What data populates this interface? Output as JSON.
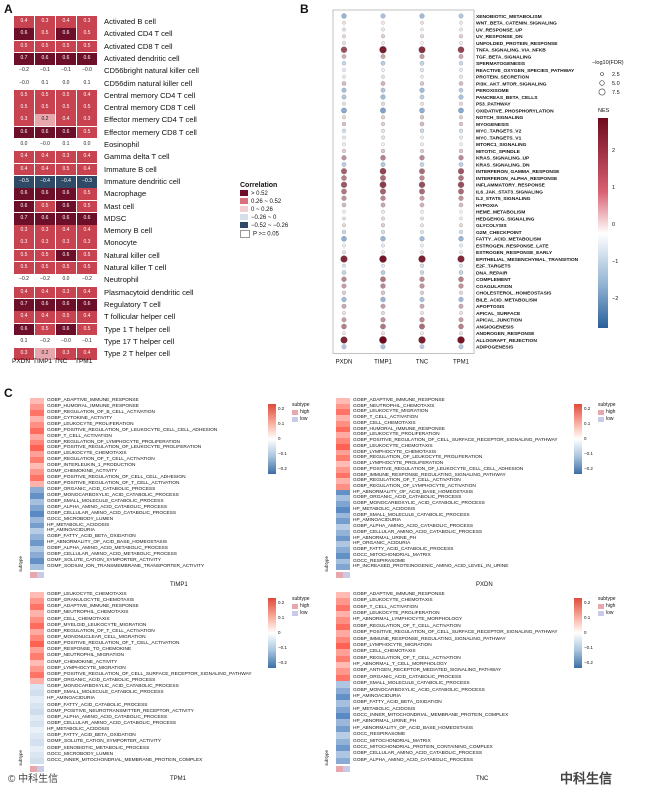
{
  "panel_labels": {
    "a": "A",
    "b": "B",
    "c": "C"
  },
  "panelA": {
    "columns": [
      "PXDN",
      "TIMP1",
      "TNC",
      "TPM1"
    ],
    "rows": [
      {
        "label": "Activated B cell",
        "values": [
          "0.4",
          "0.3",
          "0.4",
          "0.3"
        ]
      },
      {
        "label": "Activated CD4 T cell",
        "values": [
          "0.6",
          "0.5",
          "0.6",
          "0.5"
        ]
      },
      {
        "label": "Activated CD8 T cell",
        "values": [
          "0.5",
          "0.5",
          "0.5",
          "0.5"
        ]
      },
      {
        "label": "Activated dendritic cell",
        "values": [
          "0.7",
          "0.6",
          "0.6",
          "0.6"
        ]
      },
      {
        "label": "CD56bright natural killer cell",
        "values": [
          "−0.2",
          "−0.1",
          "−0.1",
          "−0.0"
        ]
      },
      {
        "label": "CD56dim natural killer cell",
        "values": [
          "−0.0",
          "0.1",
          "0.0",
          "0.1"
        ]
      },
      {
        "label": "Central memory CD4 T cell",
        "values": [
          "0.5",
          "0.5",
          "0.5",
          "0.4"
        ]
      },
      {
        "label": "Central memory CD8 T cell",
        "values": [
          "0.5",
          "0.5",
          "0.5",
          "0.5"
        ]
      },
      {
        "label": "Effector memery CD4 T cell",
        "values": [
          "0.3",
          "0.2",
          "0.4",
          "0.3"
        ]
      },
      {
        "label": "Effector memery CD8 T cell",
        "values": [
          "0.6",
          "0.6",
          "0.6",
          "0.5"
        ]
      },
      {
        "label": "Eosinophil",
        "values": [
          "0.0",
          "−0.0",
          "0.1",
          "0.0"
        ]
      },
      {
        "label": "Gamma delta T cell",
        "values": [
          "0.4",
          "0.4",
          "0.3",
          "0.4"
        ]
      },
      {
        "label": "Immature  B cell",
        "values": [
          "0.4",
          "0.4",
          "0.5",
          "0.4"
        ]
      },
      {
        "label": "Immature dendritic cell",
        "values": [
          "−0.5",
          "−0.4",
          "−0.4",
          "−0.3"
        ]
      },
      {
        "label": "Macrophage",
        "values": [
          "0.6",
          "0.6",
          "0.6",
          "0.5"
        ]
      },
      {
        "label": "Mast cell",
        "values": [
          "0.6",
          "0.5",
          "0.6",
          "0.5"
        ]
      },
      {
        "label": "MDSC",
        "values": [
          "0.7",
          "0.6",
          "0.6",
          "0.6"
        ]
      },
      {
        "label": "Memory B cell",
        "values": [
          "0.3",
          "0.3",
          "0.4",
          "0.4"
        ]
      },
      {
        "label": "Monocyte",
        "values": [
          "0.3",
          "0.3",
          "0.3",
          "0.3"
        ]
      },
      {
        "label": "Natural killer cell",
        "values": [
          "0.5",
          "0.5",
          "0.6",
          "0.5"
        ]
      },
      {
        "label": "Natural killer T cell",
        "values": [
          "0.5",
          "0.5",
          "0.5",
          "0.5"
        ]
      },
      {
        "label": "Neutrophil",
        "values": [
          "−0.2",
          "−0.2",
          "0.0",
          "−0.2"
        ]
      },
      {
        "label": "Plasmacytoid dendritic cell",
        "values": [
          "0.4",
          "0.4",
          "0.3",
          "0.4"
        ]
      },
      {
        "label": "Regulatory T cell",
        "values": [
          "0.7",
          "0.6",
          "0.6",
          "0.6"
        ]
      },
      {
        "label": "T follicular helper cell",
        "values": [
          "0.4",
          "0.4",
          "0.5",
          "0.4"
        ]
      },
      {
        "label": "Type 1 T helper cell",
        "values": [
          "0.6",
          "0.5",
          "0.6",
          "0.5"
        ]
      },
      {
        "label": "Type 17 T helper cell",
        "values": [
          "0.1",
          "−0.2",
          "−0.0",
          "−0.1"
        ]
      },
      {
        "label": "Type 2 T helper cell",
        "values": [
          "0.3",
          "0.2",
          "0.3",
          "0.4"
        ]
      }
    ],
    "legend": {
      "title": "Correlation",
      "items": [
        {
          "label": "> 0.52",
          "color": "#6e0f2a"
        },
        {
          "label": "0.26 ~ 0.52",
          "color": "#d8737d"
        },
        {
          "label": "0 ~ 0.26",
          "color": "#f3cfd2"
        },
        {
          "label": "−0.26 ~ 0",
          "color": "#d4dfea"
        },
        {
          "label": "−0.52 ~ −0.26",
          "color": "#2f4a67"
        },
        {
          "label": "P >= 0.05",
          "color": "#ffffff"
        }
      ]
    }
  },
  "panelB": {
    "columns": [
      "PXDN",
      "TIMP1",
      "TNC",
      "TPM1"
    ],
    "pathways": [
      {
        "name": "XENOBIOTIC_METABOLISM",
        "nes": [
          -1.2,
          -1.0,
          -1.1,
          -0.9
        ]
      },
      {
        "name": "WNT_BETA_CATENIN_SIGNALING",
        "nes": [
          0.3,
          0.2,
          0.3,
          0.2
        ]
      },
      {
        "name": "UV_RESPONSE_UP",
        "nes": [
          -0.4,
          -0.3,
          -0.2,
          -0.3
        ]
      },
      {
        "name": "UV_RESPONSE_DN",
        "nes": [
          0.4,
          0.5,
          0.4,
          0.5
        ]
      },
      {
        "name": "UNFOLDED_PROTEIN_RESPONSE",
        "nes": [
          0.3,
          0.2,
          0.1,
          0.2
        ]
      },
      {
        "name": "TNFA_SIGNALING_VIA_NFKB",
        "nes": [
          1.8,
          2.3,
          2.1,
          1.9
        ]
      },
      {
        "name": "TGF_BETA_SIGNALING",
        "nes": [
          0.8,
          0.9,
          1.0,
          0.9
        ]
      },
      {
        "name": "SPERMATOGENESIS",
        "nes": [
          -0.6,
          -0.8,
          -0.7,
          -0.6
        ]
      },
      {
        "name": "REACTIVE_OXYGEN_SPECIES_PATHWAY",
        "nes": [
          -0.3,
          -0.2,
          -0.4,
          -0.3
        ]
      },
      {
        "name": "PROTEIN_SECRETION",
        "nes": [
          0.2,
          0.3,
          0.2,
          0.3
        ]
      },
      {
        "name": "PI3K_AKT_MTOR_SIGNALING",
        "nes": [
          0.7,
          0.8,
          0.6,
          0.7
        ]
      },
      {
        "name": "PEROXISOME",
        "nes": [
          -1.0,
          -0.9,
          -1.1,
          -0.8
        ]
      },
      {
        "name": "PANCREAS_BETA_CELLS",
        "nes": [
          -0.9,
          -1.1,
          -0.8,
          -1.0
        ]
      },
      {
        "name": "P53_PATHWAY",
        "nes": [
          0.3,
          0.4,
          0.3,
          0.4
        ]
      },
      {
        "name": "OXIDATIVE_PHOSPHORYLATION",
        "nes": [
          -1.4,
          -1.5,
          -1.3,
          -1.4
        ]
      },
      {
        "name": "NOTCH_SIGNALING",
        "nes": [
          0.4,
          0.5,
          0.6,
          0.5
        ]
      },
      {
        "name": "MYOGENESIS",
        "nes": [
          0.6,
          0.5,
          0.7,
          0.6
        ]
      },
      {
        "name": "MYC_TARGETS_V2",
        "nes": [
          -0.5,
          -0.4,
          -0.6,
          -0.5
        ]
      },
      {
        "name": "MYC_TARGETS_V1",
        "nes": [
          -0.3,
          -0.4,
          -0.2,
          -0.3
        ]
      },
      {
        "name": "MTORC1_SIGNALING",
        "nes": [
          0.2,
          0.1,
          0.2,
          0.1
        ]
      },
      {
        "name": "MITOTIC_SPINDLE",
        "nes": [
          0.5,
          0.6,
          0.5,
          0.6
        ]
      },
      {
        "name": "KRAS_SIGNALING_UP",
        "nes": [
          1.1,
          1.3,
          1.2,
          1.2
        ]
      },
      {
        "name": "KRAS_SIGNALING_DN",
        "nes": [
          -0.8,
          -0.9,
          -0.7,
          -0.8
        ]
      },
      {
        "name": "INTERFERON_GAMMA_RESPONSE",
        "nes": [
          1.6,
          1.9,
          1.5,
          1.7
        ]
      },
      {
        "name": "INTERFERON_ALPHA_RESPONSE",
        "nes": [
          1.3,
          1.5,
          1.2,
          1.4
        ]
      },
      {
        "name": "INFLAMMATORY_RESPONSE",
        "nes": [
          1.7,
          2.0,
          1.8,
          1.8
        ]
      },
      {
        "name": "IL6_JAK_STAT3_SIGNALING",
        "nes": [
          1.4,
          1.6,
          1.5,
          1.5
        ]
      },
      {
        "name": "IL2_STAT5_SIGNALING",
        "nes": [
          1.1,
          1.2,
          1.0,
          1.1
        ]
      },
      {
        "name": "HYPOXIA",
        "nes": [
          0.7,
          0.9,
          0.8,
          0.7
        ]
      },
      {
        "name": "HEME_METABOLISM",
        "nes": [
          -0.2,
          -0.3,
          -0.2,
          -0.1
        ]
      },
      {
        "name": "HEDGEHOG_SIGNALING",
        "nes": [
          0.3,
          0.4,
          0.3,
          0.2
        ]
      },
      {
        "name": "GLYCOLYSIS",
        "nes": [
          0.4,
          0.5,
          0.3,
          0.4
        ]
      },
      {
        "name": "G2M_CHECKPOINT",
        "nes": [
          -0.6,
          -0.5,
          -0.4,
          -0.5
        ]
      },
      {
        "name": "FATTY_ACID_METABOLISM",
        "nes": [
          -1.3,
          -1.2,
          -1.1,
          -1.2
        ]
      },
      {
        "name": "ESTROGEN_RESPONSE_LATE",
        "nes": [
          -0.2,
          -0.3,
          -0.2,
          -0.3
        ]
      },
      {
        "name": "ESTROGEN_RESPONSE_EARLY",
        "nes": [
          0.3,
          0.2,
          0.3,
          0.2
        ]
      },
      {
        "name": "EPITHELIAL_MESENCHYMAL_TRANSITION",
        "nes": [
          2.2,
          2.4,
          2.3,
          2.2
        ]
      },
      {
        "name": "E2F_TARGETS",
        "nes": [
          -0.4,
          -0.3,
          -0.5,
          -0.4
        ]
      },
      {
        "name": "DNA_REPAIR",
        "nes": [
          -0.7,
          -0.8,
          -0.6,
          -0.7
        ]
      },
      {
        "name": "COMPLEMENT",
        "nes": [
          1.2,
          1.4,
          1.2,
          1.3
        ]
      },
      {
        "name": "COAGULATION",
        "nes": [
          1.0,
          1.2,
          1.1,
          1.1
        ]
      },
      {
        "name": "CHOLESTEROL_HOMEOSTASIS",
        "nes": [
          0.5,
          0.6,
          0.5,
          0.4
        ]
      },
      {
        "name": "BILE_ACID_METABOLISM",
        "nes": [
          -1.1,
          -1.2,
          -1.0,
          -1.1
        ]
      },
      {
        "name": "APOPTOSIS",
        "nes": [
          0.9,
          1.0,
          0.9,
          0.9
        ]
      },
      {
        "name": "APICAL_SURFACE",
        "nes": [
          0.3,
          0.4,
          0.3,
          0.3
        ]
      },
      {
        "name": "APICAL_JUNCTION",
        "nes": [
          1.0,
          1.1,
          1.2,
          1.0
        ]
      },
      {
        "name": "ANGIOGENESIS",
        "nes": [
          1.3,
          1.4,
          1.5,
          1.3
        ]
      },
      {
        "name": "ANDROGEN_RESPONSE",
        "nes": [
          0.2,
          0.3,
          0.2,
          0.3
        ]
      },
      {
        "name": "ALLOGRAFT_REJECTION",
        "nes": [
          2.2,
          2.5,
          2.3,
          2.4
        ]
      },
      {
        "name": "ADIPOGENESIS",
        "nes": [
          -0.9,
          -1.0,
          -0.8,
          -0.9
        ]
      }
    ],
    "size_legend": {
      "title": "−log10(FDR)",
      "items": [
        "2.5",
        "5.0",
        "7.5"
      ]
    },
    "color_legend": {
      "title": "NES",
      "ticks": [
        "2",
        "1",
        "0",
        "−1",
        "−2"
      ]
    }
  },
  "panelC": {
    "annotation_label": "subtype",
    "annotation_items": [
      "high",
      "low"
    ],
    "colorbar_ticks": [
      "0.2",
      "0.1",
      "0",
      "−0.1",
      "−0.2"
    ],
    "row_annotation_label": "subtype",
    "heatmaps": [
      {
        "gene": "TIMP1",
        "terms": [
          "GOBP_ADAPTIVE_IMMUNE_RESPONSE",
          "GOBP_HUMORAL_IMMUNE_RESPONSE",
          "GOBP_REGULATION_OF_B_CELL_ACTIVATION",
          "GOBP_CYTOKINE_ACTIVITY",
          "GOBP_LEUKOCYTE_PROLIFERATION",
          "GOBP_POSITIVE_REGULATION_OF_LEUKOCYTE_CELL_CELL_ADHESION",
          "GOBP_T_CELL_ACTIVATION",
          "GOBP_REGULATION_OF_LYMPHOCYTE_PROLIFERATION",
          "GOBP_POSITIVE_REGULATION_OF_LEUKOCYTE_PROLIFERATION",
          "GOBP_LEUKOCYTE_CHEMOTAXIS",
          "GOBP_REGULATION_OF_T_CELL_ACTIVATION",
          "GOBP_INTERLEUKIN_1_PRODUCTION",
          "GOMF_CHEMOKINE_ACTIVITY",
          "GOBP_POSITIVE_REGULATION_OF_CELL_CELL_ADHESION",
          "GOBP_POSITIVE_REGULATION_OF_T_CELL_ACTIVATION",
          "GOBP_ORGANIC_ACID_CATABOLIC_PROCESS",
          "GOBP_MONOCARBOXYLIC_ACID_CATABOLIC_PROCESS",
          "GOBP_SMALL_MOLECULE_CATABOLIC_PROCESS",
          "GOBP_ALPHA_AMINO_ACID_CATABOLIC_PROCESS",
          "GOBP_CELLULAR_AMINO_ACID_CATABOLIC_PROCESS",
          "GOCC_MICROBODY_LUMEN",
          "HP_METABOLIC_ACIDOSIS",
          "HP_AMINOACIDURIA",
          "GOBP_FATTY_ACID_BETA_OXIDATION",
          "HP_ABNORMALITY_OF_ACID_BASE_HOMEOSTASIS",
          "GOBP_ALPHA_AMINO_ACID_METABOLIC_PROCESS",
          "GOBP_CELLULAR_AMINO_ACID_METABOLIC_PROCESS",
          "GOMF_SOLUTE_CATION_SYMPORTER_ACTIVITY",
          "GOMF_SODIUM_ION_TRANSMEMBRANE_TRANSPORTER_ACTIVITY"
        ]
      },
      {
        "gene": "PXDN",
        "terms": [
          "GOBP_ADAPTIVE_IMMUNE_RESPONSE",
          "GOBP_NEUTROPHIL_CHEMOTAXIS",
          "GOBP_LEUKOCYTE_MIGRATION",
          "GOBP_T_CELL_ACTIVATION",
          "GOBP_CELL_CHEMOTAXIS",
          "GOBP_HUMORAL_IMMUNE_RESPONSE",
          "GOBP_LEUKOCYTE_PROLIFERATION",
          "GOBP_POSITIVE_REGULATION_OF_CELL_SURFACE_RECEPTOR_SIGNALING_PATHWAY",
          "GOBP_LEUKOCYTE_CHEMOTAXIS",
          "GOBP_LYMPHOCYTE_CHEMOTAXIS",
          "GOBP_REGULATION_OF_LEUKOCYTE_PROLIFERATION",
          "GOBP_LYMPHOCYTE_PROLIFERATION",
          "GOBP_POSITIVE_REGULATION_OF_LEUKOCYTE_CELL_CELL_ADHESION",
          "GOBP_IMMUNE_RESPONSE_REGULATING_SIGNALING_PATHWAY",
          "GOBP_REGULATION_OF_T_CELL_ACTIVATION",
          "GOBP_REGULATION_OF_LYMPHOCYTE_ACTIVATION",
          "HP_ABNORMALITY_OF_ACID_BASE_HOMEOSTASIS",
          "GOBP_ORGANIC_ACID_CATABOLIC_PROCESS",
          "GOBP_MONOCARBOXYLIC_ACID_CATABOLIC_PROCESS",
          "HP_METABOLIC_ACIDOSIS",
          "GOBP_SMALL_MOLECULE_CATABOLIC_PROCESS",
          "HP_AMINOACIDURIA",
          "GOBP_ALPHA_AMINO_ACID_CATABOLIC_PROCESS",
          "GOBP_CELLULAR_AMINO_ACID_CATABOLIC_PROCESS",
          "HP_ABNORMAL_URINE_PH",
          "HP_ORGANIC_ACIDURIA",
          "GOBP_FATTY_ACID_CATABOLIC_PROCESS",
          "GOCC_MITOCHONDRIAL_MATRIX",
          "GOCC_RESPIRASOME",
          "HP_INCREASED_PROTEINOGENIC_AMINO_ACID_LEVEL_IN_URINE"
        ]
      },
      {
        "gene": "TPM1",
        "terms": [
          "GOBP_LEUKOCYTE_CHEMOTAXIS",
          "GOBP_GRANULOCYTE_CHEMOTAXIS",
          "GOBP_ADAPTIVE_IMMUNE_RESPONSE",
          "GOBP_NEUTROPHIL_CHEMOTAXIS",
          "GOBP_CELL_CHEMOTAXIS",
          "GOBP_MYELOID_LEUKOCYTE_MIGRATION",
          "GOBP_REGULATION_OF_T_CELL_ACTIVATION",
          "GOBP_MONONUCLEAR_CELL_MIGRATION",
          "GOBP_POSITIVE_REGULATION_OF_T_CELL_ACTIVATION",
          "GOBP_RESPONSE_TO_CHEMOKINE",
          "GOBP_NEUTROPHIL_MIGRATION",
          "GOMF_CHEMOKINE_ACTIVITY",
          "GOBP_LYMPHOCYTE_MIGRATION",
          "GOBP_POSITIVE_REGULATION_OF_CELL_SURFACE_RECEPTOR_SIGNALING_PATHWAY",
          "GOBP_ORGANIC_ACID_CATABOLIC_PROCESS",
          "GOBP_MONOCARBOXYLIC_ACID_CATABOLIC_PROCESS",
          "GOBP_SMALL_MOLECULE_CATABOLIC_PROCESS",
          "HP_AMINOACIDURIA",
          "GOBP_FATTY_ACID_CATABOLIC_PROCESS",
          "GOMF_POSITIVE_NEUROTRANSMITTER_RECEPTOR_ACTIVITY",
          "GOBP_ALPHA_AMINO_ACID_CATABOLIC_PROCESS",
          "GOBP_CELLULAR_AMINO_ACID_CATABOLIC_PROCESS",
          "HP_METABOLIC_ACIDOSIS",
          "GOBP_FATTY_ACID_BETA_OXIDATION",
          "GOMF_SOLUTE_CATION_SYMPORTER_ACTIVITY",
          "GOBP_XENOBIOTIC_METABOLIC_PROCESS",
          "GOCC_MICROBODY_LUMEN",
          "GOCC_INNER_MITOCHONDRIAL_MEMBRANE_PROTEIN_COMPLEX"
        ]
      },
      {
        "gene": "TNC",
        "terms": [
          "GOBP_ADAPTIVE_IMMUNE_RESPONSE",
          "GOBP_LEUKOCYTE_CHEMOTAXIS",
          "GOBP_T_CELL_ACTIVATION",
          "GOBP_LEUKOCYTE_PROLIFERATION",
          "HP_ABNORMAL_LYMPHOCYTE_MORPHOLOGY",
          "GOBP_REGULATION_OF_T_CELL_ACTIVATION",
          "GOBP_POSITIVE_REGULATION_OF_CELL_SURFACE_RECEPTOR_SIGNALING_PATHWAY",
          "GOBP_IMMUNE_RESPONSE_REGULATING_SIGNALING_PATHWAY",
          "GOBP_LYMPHOCYTE_MIGRATION",
          "GOBP_CELL_CHEMOTAXIS",
          "GOBP_REGULATION_OF_T_CELL_ACTIVATION",
          "HP_ABNORMAL_T_CELL_MORPHOLOGY",
          "GOBP_ANTIGEN_RECEPTOR_MEDIATED_SIGNALING_PATHWAY",
          "GOBP_ORGANIC_ACID_CATABOLIC_PROCESS",
          "GOBP_SMALL_MOLECULE_CATABOLIC_PROCESS",
          "GOBP_MONOCARBOXYLIC_ACID_CATABOLIC_PROCESS",
          "HP_AMINOACIDURIA",
          "GOBP_FATTY_ACID_BETA_OXIDATION",
          "HP_METABOLIC_ACIDOSIS",
          "GOCC_INNER_MITOCHONDRIAL_MEMBRANE_PROTEIN_COMPLEX",
          "HP_ABNORMAL_URINE_PH",
          "HP_ABNORMALITY_OF_ACID_BASE_HOMEOSTASIS",
          "GOCC_RESPIRASOME",
          "GOCC_MITOCHONDRIAL_MATRIX",
          "GOCC_MITOCHONDRIAL_PROTEIN_CONTAINING_COMPLEX",
          "GOBP_CELLULAR_AMINO_ACID_CATABOLIC_PROCESS",
          "GOBP_ALPHA_AMINO_ACID_CATABOLIC_PROCESS"
        ]
      }
    ]
  },
  "watermarks": {
    "left": "© 中科生信",
    "right": "中科生信"
  }
}
